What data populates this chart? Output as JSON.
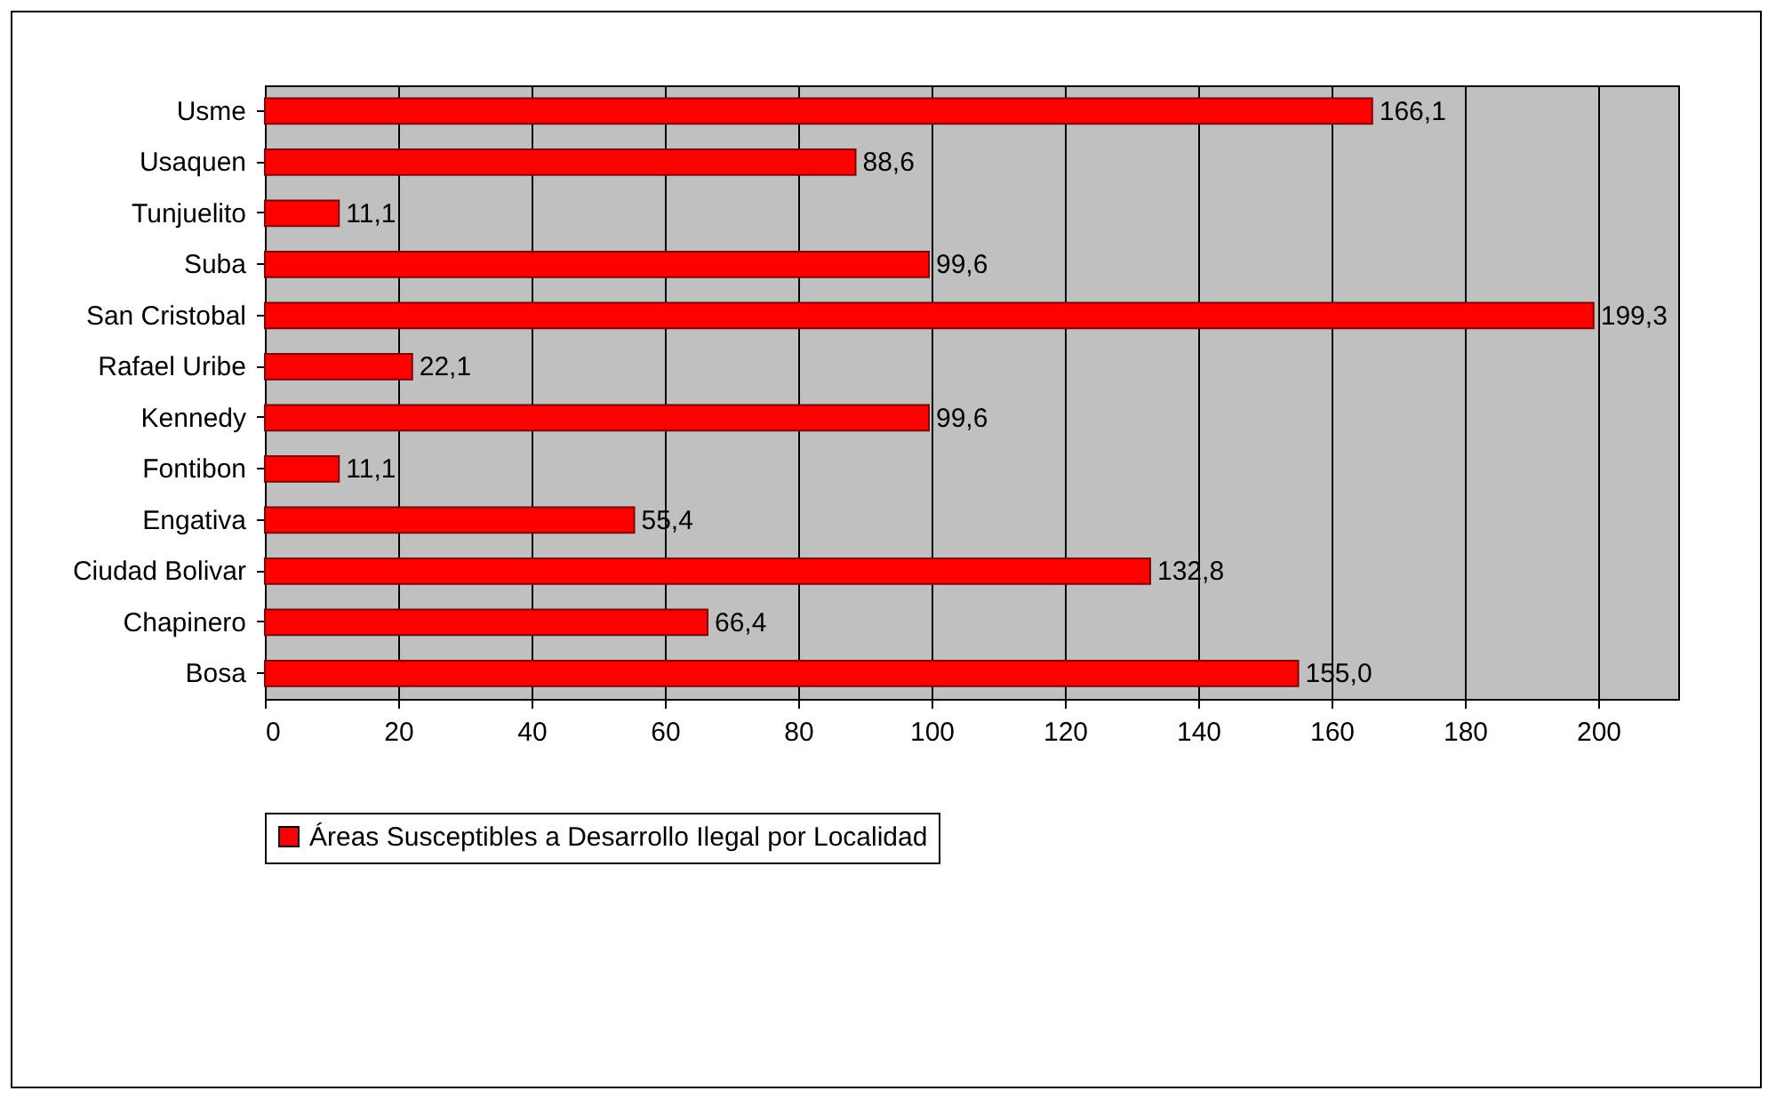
{
  "chart_data": {
    "type": "bar",
    "orientation": "horizontal",
    "categories": [
      "Usme",
      "Usaquen",
      "Tunjuelito",
      "Suba",
      "San Cristobal",
      "Rafael Uribe",
      "Kennedy",
      "Fontibon",
      "Engativa",
      "Ciudad Bolivar",
      "Chapinero",
      "Bosa"
    ],
    "series": [
      {
        "name": "Áreas Susceptibles a Desarrollo Ilegal por Localidad",
        "color": "#ff0000",
        "values": [
          166.1,
          88.6,
          11.1,
          99.6,
          199.3,
          22.1,
          99.6,
          11.1,
          55.4,
          132.8,
          66.4,
          155.0
        ],
        "value_labels": [
          "166,1",
          "88,6",
          "11,1",
          "99,6",
          "199,3",
          "22,1",
          "99,6",
          "11,1",
          "55,4",
          "132,8",
          "66,4",
          "155,0"
        ]
      }
    ],
    "xlim": [
      0,
      212
    ],
    "xticks": [
      0,
      20,
      40,
      60,
      80,
      100,
      120,
      140,
      160,
      180,
      200
    ],
    "grid": "x",
    "legend": "bottom"
  }
}
